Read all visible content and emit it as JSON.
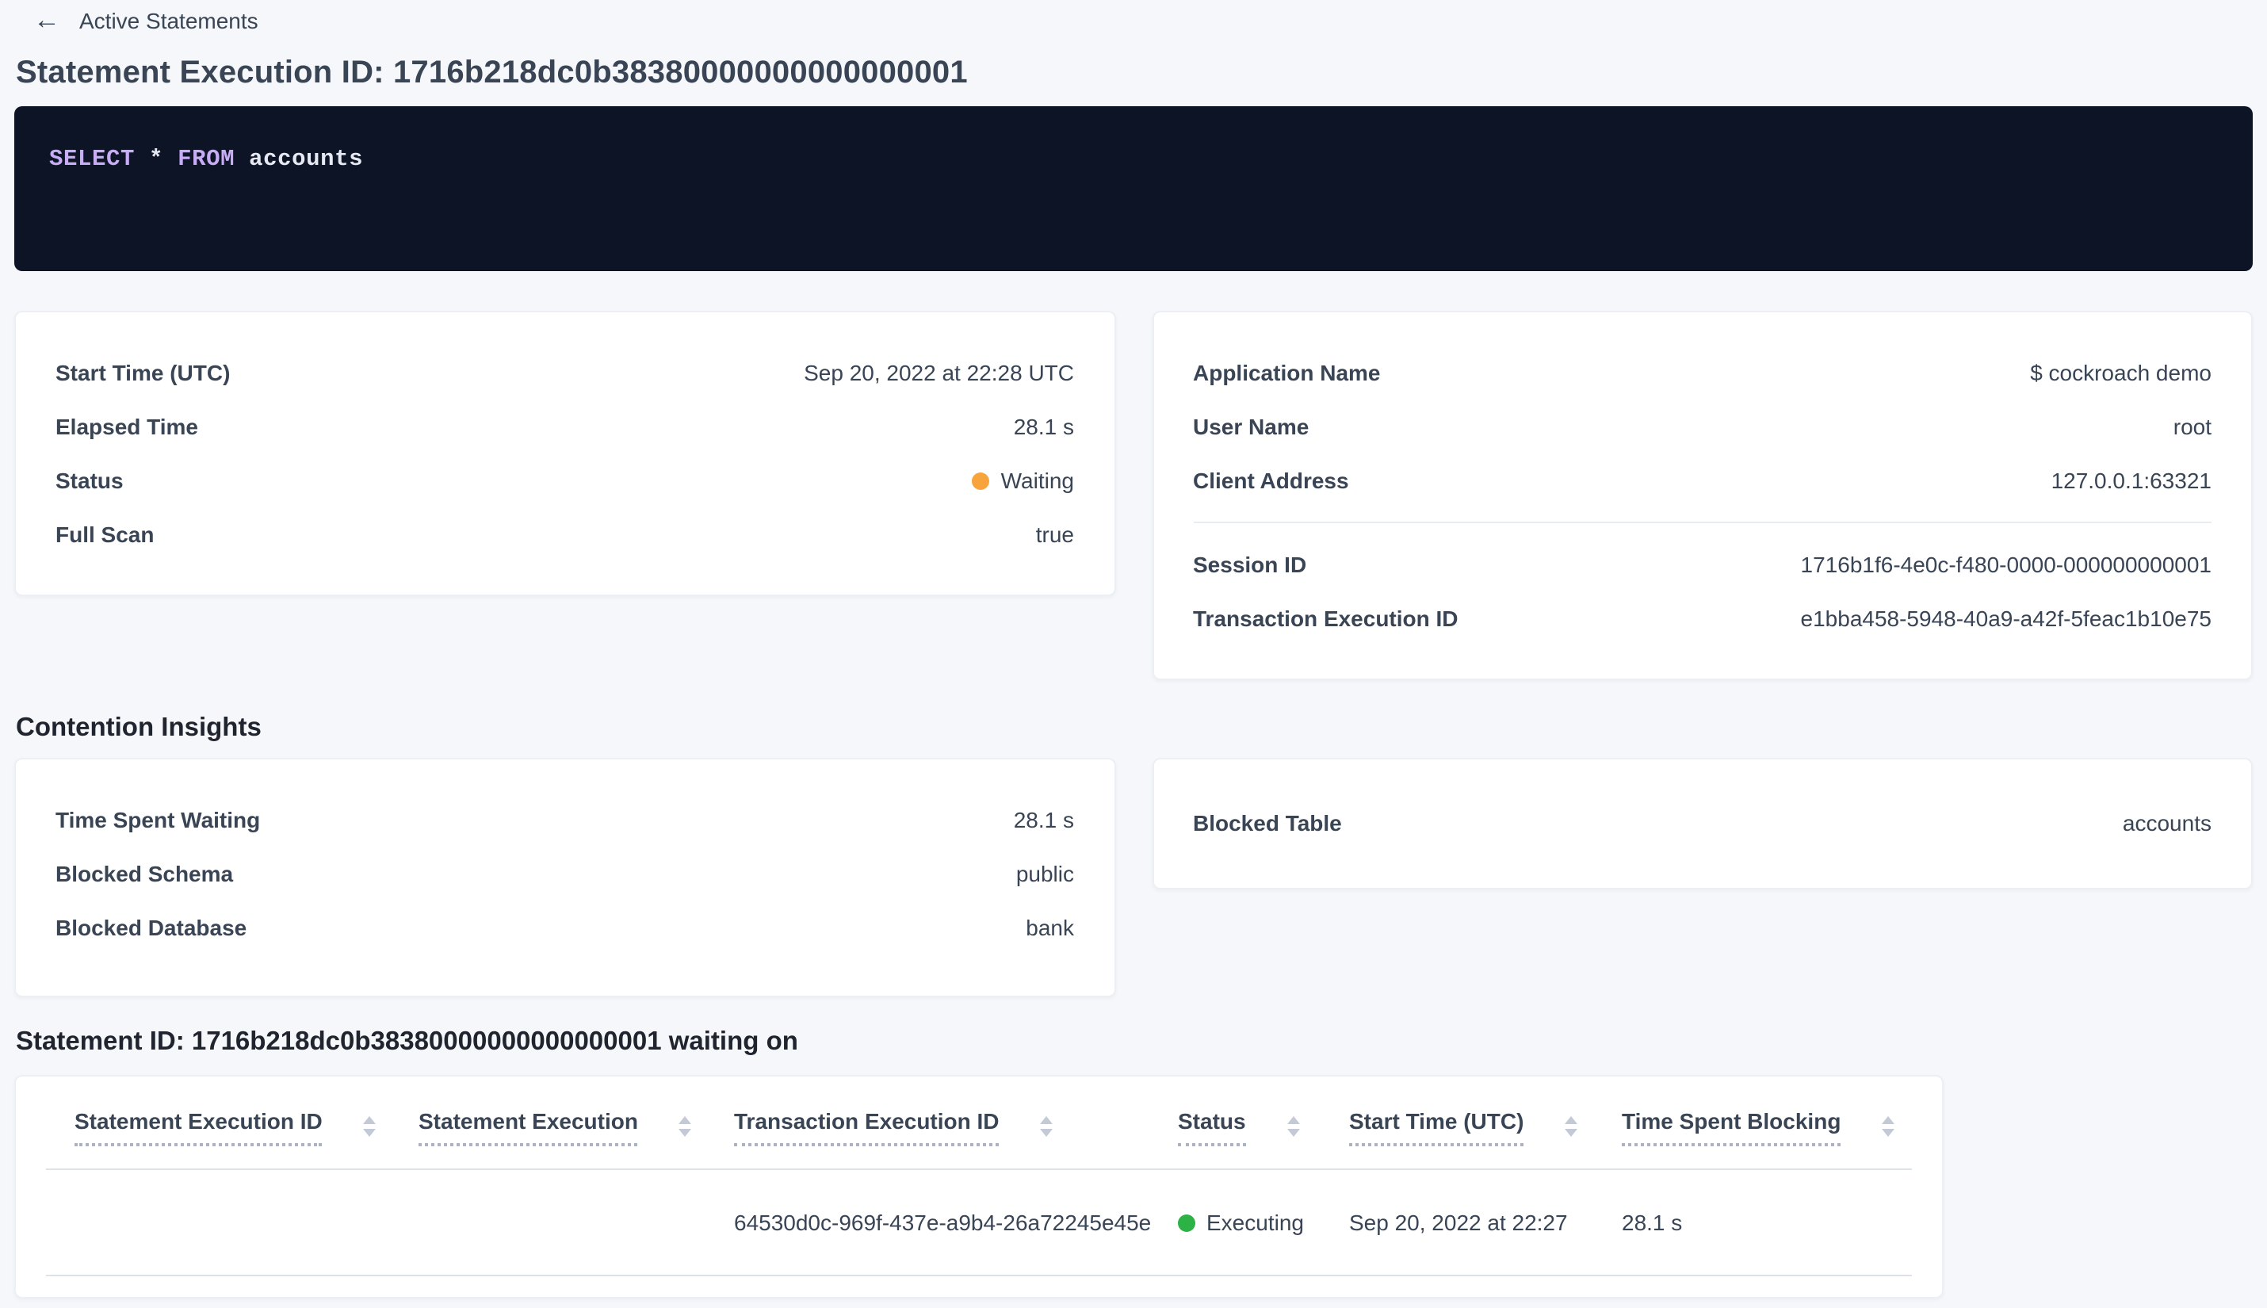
{
  "colors": {
    "page_background": "#f5f7fa",
    "link_blue": "#0b5fff",
    "status_waiting_orange": "#f7a43c",
    "status_executing_green": "#2db245",
    "sql_box_background": "#0d1426",
    "sql_keyword_purple": "#c8acf6",
    "text_slate": "#394455"
  },
  "back_link": {
    "label": "Active Statements",
    "icon": "arrow-left",
    "arrow_glyph": "←"
  },
  "page_title": "Statement Execution ID: 1716b218dc0b38380000000000000001",
  "sql_box": {
    "tokens": [
      {
        "t": "SELECT",
        "kind": "keyword"
      },
      {
        "t": " * ",
        "kind": "plain"
      },
      {
        "t": "FROM",
        "kind": "keyword"
      },
      {
        "t": " accounts",
        "kind": "plain"
      }
    ]
  },
  "overview": {
    "left": {
      "rows": [
        {
          "label": "Start Time (UTC)",
          "value": "Sep 20, 2022 at 22:28 UTC"
        },
        {
          "label": "Elapsed Time",
          "value": "28.1 s"
        },
        {
          "label": "Status",
          "value": "Waiting",
          "status_color": "#f7a43c"
        },
        {
          "label": "Full Scan",
          "value": "true"
        }
      ]
    },
    "right": {
      "rows": [
        {
          "label": "Application Name",
          "value": "$ cockroach demo"
        },
        {
          "label": "User Name",
          "value": "root"
        },
        {
          "label": "Client Address",
          "value": "127.0.0.1:63321"
        }
      ],
      "links": [
        {
          "label": "Session ID",
          "value": "1716b1f6-4e0c-f480-0000-000000000001"
        },
        {
          "label": "Transaction Execution ID",
          "value": "e1bba458-5948-40a9-a42f-5feac1b10e75"
        }
      ]
    }
  },
  "contention": {
    "heading": "Contention Insights",
    "left": {
      "rows": [
        {
          "label": "Time Spent Waiting",
          "value": "28.1 s"
        },
        {
          "label": "Blocked Schema",
          "value": "public"
        },
        {
          "label": "Blocked Database",
          "value": "bank"
        }
      ]
    },
    "right": {
      "rows": [
        {
          "label": "Blocked Table",
          "value": "accounts"
        }
      ]
    }
  },
  "waiting_on": {
    "heading": "Statement ID: 1716b218dc0b38380000000000000001 waiting on",
    "table": {
      "columns": [
        "Statement Execution ID",
        "Statement Execution",
        "Transaction Execution ID",
        "Status",
        "Start Time (UTC)",
        "Time Spent Blocking"
      ],
      "rows": [
        {
          "statement_execution_id": "",
          "statement_execution": "",
          "transaction_execution_id": "64530d0c-969f-437e-a9b4-26a72245e45e",
          "status": "Executing",
          "status_color": "#2db245",
          "start_time": "Sep 20, 2022 at 22:27",
          "time_spent_blocking": "28.1 s"
        }
      ]
    }
  }
}
